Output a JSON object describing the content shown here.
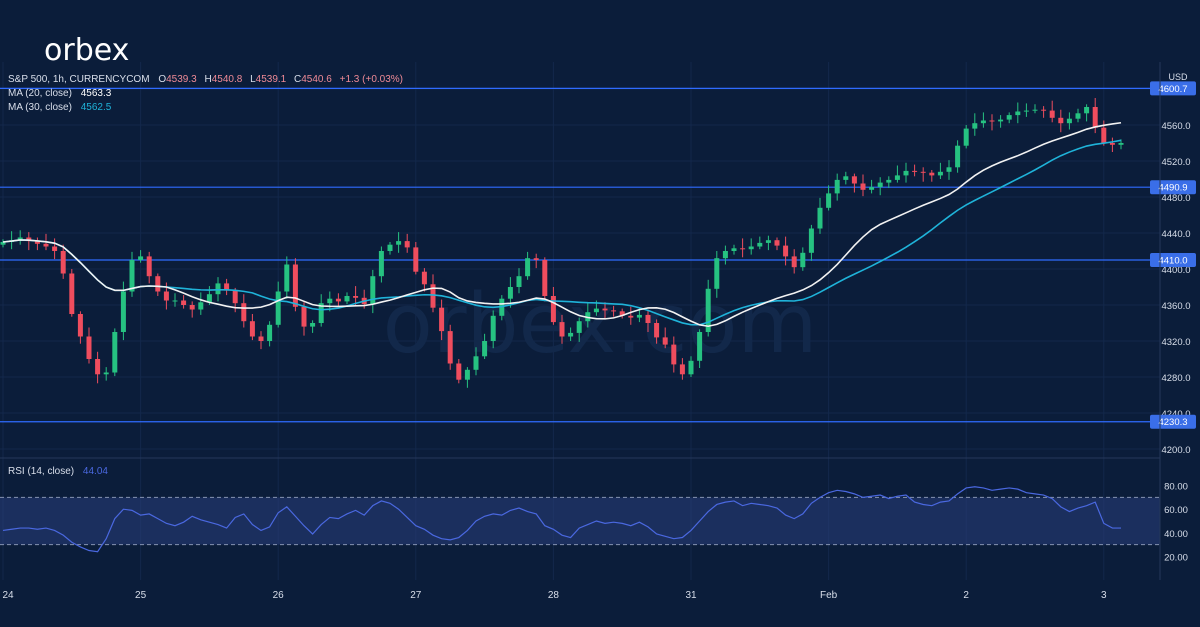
{
  "brand": {
    "name": "orbex",
    "watermark": "orbex.com"
  },
  "header": {
    "symbol": "S&P 500, 1h, CURRENCYCOM",
    "ohlc": [
      {
        "k": "O",
        "v": "4539.3"
      },
      {
        "k": "H",
        "v": "4540.8"
      },
      {
        "k": "L",
        "v": "4539.1"
      },
      {
        "k": "C",
        "v": "4540.6"
      }
    ],
    "change": "+1.3 (+0.03%)",
    "ma20_label": "MA (20, close)",
    "ma20_value": "4563.3",
    "ma30_label": "MA (30, close)",
    "ma30_value": "4562.5"
  },
  "rsi_header": {
    "label": "RSI (14, close)",
    "value": "44.04"
  },
  "colors": {
    "background": "#0b1d3a",
    "up": "#26c281",
    "down": "#ef4d5e",
    "ma20": "#f2f2f2",
    "ma30": "#1fb3d9",
    "level": "#2f6bff",
    "rsi": "#4a68e0",
    "rsi_band": "#2a3e7c",
    "text": "#d9dfeb",
    "label_bg": "#3a6ee8"
  },
  "chart_data": {
    "type": "candlestick",
    "currency": "USD",
    "ylim": [
      4190,
      4630
    ],
    "yticks": [
      "4600.0",
      "4560.0",
      "4520.0",
      "4480.0",
      "4440.0",
      "4400.0",
      "4360.0",
      "4320.0",
      "4280.0",
      "4240.0",
      "4200.0"
    ],
    "levels": [
      "4600.7",
      "4490.9",
      "4410.0",
      "4230.3"
    ],
    "days": [
      {
        "label": "24",
        "start": 0
      },
      {
        "label": "25",
        "start": 16
      },
      {
        "label": "26",
        "start": 32
      },
      {
        "label": "27",
        "start": 48
      },
      {
        "label": "28",
        "start": 64
      },
      {
        "label": "31",
        "start": 80
      },
      {
        "label": "Feb",
        "start": 96
      },
      {
        "label": "2",
        "start": 112
      },
      {
        "label": "3",
        "start": 128
      }
    ],
    "close": [
      4430,
      4432,
      4435,
      4431,
      4428,
      4425,
      4420,
      4395,
      4350,
      4325,
      4300,
      4283,
      4285,
      4330,
      4375,
      4410,
      4414,
      4392,
      4375,
      4365,
      4365,
      4360,
      4355,
      4363,
      4372,
      4384,
      4376,
      4362,
      4342,
      4325,
      4320,
      4338,
      4375,
      4405,
      4358,
      4336,
      4340,
      4362,
      4367,
      4364,
      4370,
      4368,
      4361,
      4392,
      4420,
      4427,
      4431,
      4424,
      4397,
      4383,
      4357,
      4331,
      4295,
      4277,
      4288,
      4303,
      4320,
      4348,
      4367,
      4380,
      4392,
      4412,
      4410,
      4370,
      4341,
      4325,
      4329,
      4342,
      4352,
      4356,
      4354,
      4353,
      4348,
      4346,
      4349,
      4340,
      4324,
      4316,
      4294,
      4283,
      4298,
      4330,
      4378,
      4412,
      4420,
      4423,
      4422,
      4425,
      4429,
      4432,
      4426,
      4414,
      4402,
      4418,
      4445,
      4468,
      4484,
      4499,
      4503,
      4495,
      4488,
      4491,
      4496,
      4499,
      4504,
      4509,
      4508,
      4507,
      4504,
      4508,
      4513,
      4537,
      4556,
      4562,
      4565,
      4564,
      4566,
      4571,
      4575,
      4576,
      4577,
      4576,
      4568,
      4562,
      4567,
      4573,
      4580,
      4557,
      4540,
      4538,
      4540
    ],
    "rsi_levels": [
      70,
      30
    ],
    "rsi_ticks": [
      "80.00",
      "60.00",
      "40.00",
      "20.00"
    ],
    "rsi": [
      42,
      43,
      44,
      44,
      43,
      44,
      42,
      38,
      32,
      28,
      25,
      24,
      35,
      52,
      60,
      59,
      55,
      56,
      52,
      48,
      46,
      49,
      54,
      51,
      49,
      47,
      44,
      53,
      56,
      47,
      42,
      45,
      57,
      62,
      54,
      46,
      39,
      47,
      53,
      52,
      56,
      59,
      55,
      63,
      67,
      65,
      60,
      53,
      46,
      43,
      38,
      35,
      34,
      36,
      42,
      50,
      54,
      56,
      55,
      59,
      61,
      58,
      56,
      46,
      43,
      38,
      36,
      44,
      47,
      50,
      48,
      49,
      48,
      46,
      49,
      45,
      39,
      37,
      35,
      36,
      42,
      50,
      58,
      64,
      66,
      67,
      63,
      65,
      64,
      63,
      61,
      55,
      52,
      56,
      65,
      70,
      74,
      76,
      75,
      73,
      70,
      71,
      72,
      69,
      71,
      72,
      66,
      64,
      63,
      66,
      67,
      73,
      78,
      79,
      78,
      76,
      77,
      78,
      77,
      74,
      73,
      72,
      69,
      62,
      58,
      61,
      63,
      66,
      48,
      44,
      44
    ]
  }
}
